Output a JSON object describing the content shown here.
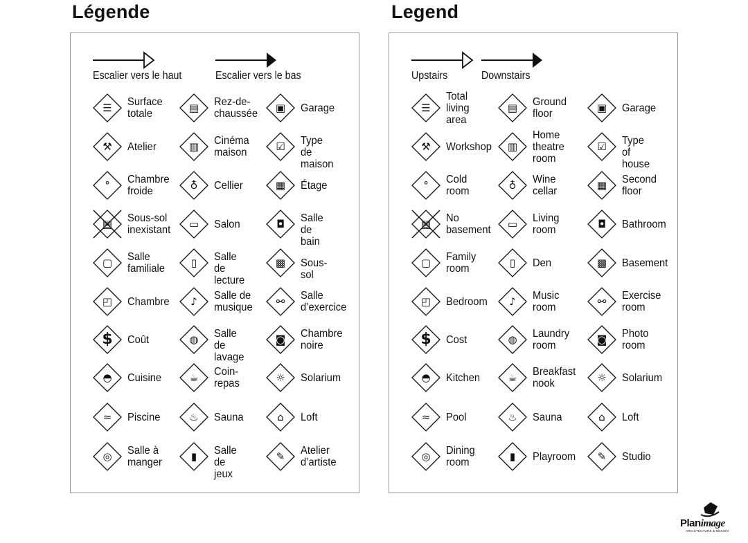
{
  "panels": [
    {
      "title": "Légende",
      "upstairs_label": "Escalier vers le haut",
      "downstairs_label": "Escalier vers le bas",
      "items": [
        {
          "label": "Surface\ntotale",
          "icon": "total-area-icon"
        },
        {
          "label": "Rez-de-\nchaussée",
          "icon": "ground-floor-icon"
        },
        {
          "label": "Garage",
          "icon": "garage-icon"
        },
        {
          "label": "Atelier",
          "icon": "hammer-icon"
        },
        {
          "label": "Cinéma\nmaison",
          "icon": "home-theatre-icon"
        },
        {
          "label": "Type de\nmaison",
          "icon": "house-type-icon"
        },
        {
          "label": "Chambre\nfroide",
          "icon": "thermometer-icon"
        },
        {
          "label": "Cellier",
          "icon": "wine-icon"
        },
        {
          "label": "Étage",
          "icon": "second-floor-icon"
        },
        {
          "label": "Sous-sol\ninexistant",
          "icon": "no-basement-icon"
        },
        {
          "label": "Salon",
          "icon": "sofa-icon"
        },
        {
          "label": "Salle de\nbain",
          "icon": "toilet-icon"
        },
        {
          "label": "Salle\nfamiliale",
          "icon": "tv-icon"
        },
        {
          "label": "Salle de\nlecture",
          "icon": "book-icon"
        },
        {
          "label": "Sous-sol",
          "icon": "basement-icon"
        },
        {
          "label": "Chambre",
          "icon": "bed-icon"
        },
        {
          "label": "Salle de\nmusique",
          "icon": "music-note-icon"
        },
        {
          "label": "Salle\nd’exercice",
          "icon": "dumbbell-icon"
        },
        {
          "label": "Coût",
          "icon": "dollar-icon"
        },
        {
          "label": "Salle de\nlavage",
          "icon": "laundry-icon"
        },
        {
          "label": "Chambre\nnoire",
          "icon": "camera-icon"
        },
        {
          "label": "Cuisine",
          "icon": "cooking-pot-icon"
        },
        {
          "label": "Coin-\nrepas",
          "icon": "coffee-cup-icon"
        },
        {
          "label": "Solarium",
          "icon": "sun-icon"
        },
        {
          "label": "Piscine",
          "icon": "pool-icon"
        },
        {
          "label": "Sauna",
          "icon": "sauna-icon"
        },
        {
          "label": "Loft",
          "icon": "loft-icon"
        },
        {
          "label": "Salle à\nmanger",
          "icon": "plate-icon"
        },
        {
          "label": "Salle de\njeux",
          "icon": "playroom-icon"
        },
        {
          "label": "Atelier\nd’artiste",
          "icon": "palette-icon"
        }
      ]
    },
    {
      "title": "Legend",
      "upstairs_label": "Upstairs",
      "downstairs_label": "Downstairs",
      "items": [
        {
          "label": "Total\nliving\narea",
          "icon": "total-area-icon"
        },
        {
          "label": "Ground\nfloor",
          "icon": "ground-floor-icon"
        },
        {
          "label": "Garage",
          "icon": "garage-icon"
        },
        {
          "label": "Workshop",
          "icon": "hammer-icon"
        },
        {
          "label": "Home\ntheatre\nroom",
          "icon": "home-theatre-icon"
        },
        {
          "label": "Type of\nhouse",
          "icon": "house-type-icon"
        },
        {
          "label": "Cold\nroom",
          "icon": "thermometer-icon"
        },
        {
          "label": "Wine\ncellar",
          "icon": "wine-icon"
        },
        {
          "label": "Second\nfloor",
          "icon": "second-floor-icon"
        },
        {
          "label": "No\nbasement",
          "icon": "no-basement-icon"
        },
        {
          "label": "Living\nroom",
          "icon": "sofa-icon"
        },
        {
          "label": "Bathroom",
          "icon": "toilet-icon"
        },
        {
          "label": "Family\nroom",
          "icon": "tv-icon"
        },
        {
          "label": "Den",
          "icon": "book-icon"
        },
        {
          "label": "Basement",
          "icon": "basement-icon"
        },
        {
          "label": "Bedroom",
          "icon": "bed-icon"
        },
        {
          "label": "Music\nroom",
          "icon": "music-note-icon"
        },
        {
          "label": "Exercise\nroom",
          "icon": "dumbbell-icon"
        },
        {
          "label": "Cost",
          "icon": "dollar-icon"
        },
        {
          "label": "Laundry\nroom",
          "icon": "laundry-icon"
        },
        {
          "label": "Photo\nroom",
          "icon": "camera-icon"
        },
        {
          "label": "Kitchen",
          "icon": "cooking-pot-icon"
        },
        {
          "label": "Breakfast\nnook",
          "icon": "coffee-cup-icon"
        },
        {
          "label": "Solarium",
          "icon": "sun-icon"
        },
        {
          "label": "Pool",
          "icon": "pool-icon"
        },
        {
          "label": "Sauna",
          "icon": "sauna-icon"
        },
        {
          "label": "Loft",
          "icon": "loft-icon"
        },
        {
          "label": "Dining\nroom",
          "icon": "plate-icon"
        },
        {
          "label": "Playroom",
          "icon": "playroom-icon"
        },
        {
          "label": "Studio",
          "icon": "palette-icon"
        }
      ]
    }
  ],
  "logo": {
    "word_main": "Plan",
    "word_italic": "image",
    "tagline": "ARCHITECTURE & DESIGN"
  }
}
